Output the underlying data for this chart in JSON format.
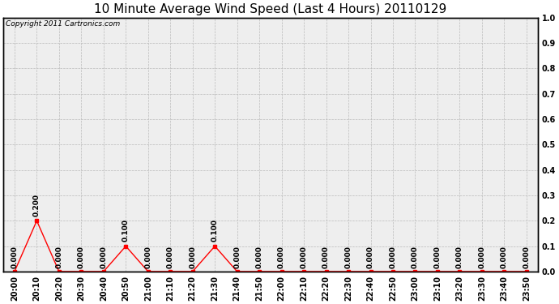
{
  "title": "10 Minute Average Wind Speed (Last 4 Hours) 20110129",
  "copyright": "Copyright 2011 Cartronics.com",
  "x_labels": [
    "20:00",
    "20:10",
    "20:20",
    "20:30",
    "20:40",
    "20:50",
    "21:00",
    "21:10",
    "21:20",
    "21:30",
    "21:40",
    "21:50",
    "22:00",
    "22:10",
    "22:20",
    "22:30",
    "22:40",
    "22:50",
    "23:00",
    "23:10",
    "23:20",
    "23:30",
    "23:40",
    "23:50"
  ],
  "y_values": [
    0.0,
    0.2,
    0.0,
    0.0,
    0.0,
    0.1,
    0.0,
    0.0,
    0.0,
    0.1,
    0.0,
    0.0,
    0.0,
    0.0,
    0.0,
    0.0,
    0.0,
    0.0,
    0.0,
    0.0,
    0.0,
    0.0,
    0.0,
    0.0
  ],
  "line_color": "#ff0000",
  "marker_color": "#ff0000",
  "marker": "s",
  "marker_size": 2.5,
  "ylim": [
    0.0,
    1.0
  ],
  "yticks": [
    0.0,
    0.1,
    0.2,
    0.3,
    0.4,
    0.5,
    0.6,
    0.7,
    0.8,
    0.9,
    1.0
  ],
  "grid_color": "#bbbbbb",
  "bg_color": "#ffffff",
  "plot_bg_color": "#eeeeee",
  "title_fontsize": 11,
  "label_fontsize": 7,
  "annotation_fontsize": 6.5,
  "copyright_fontsize": 6.5
}
